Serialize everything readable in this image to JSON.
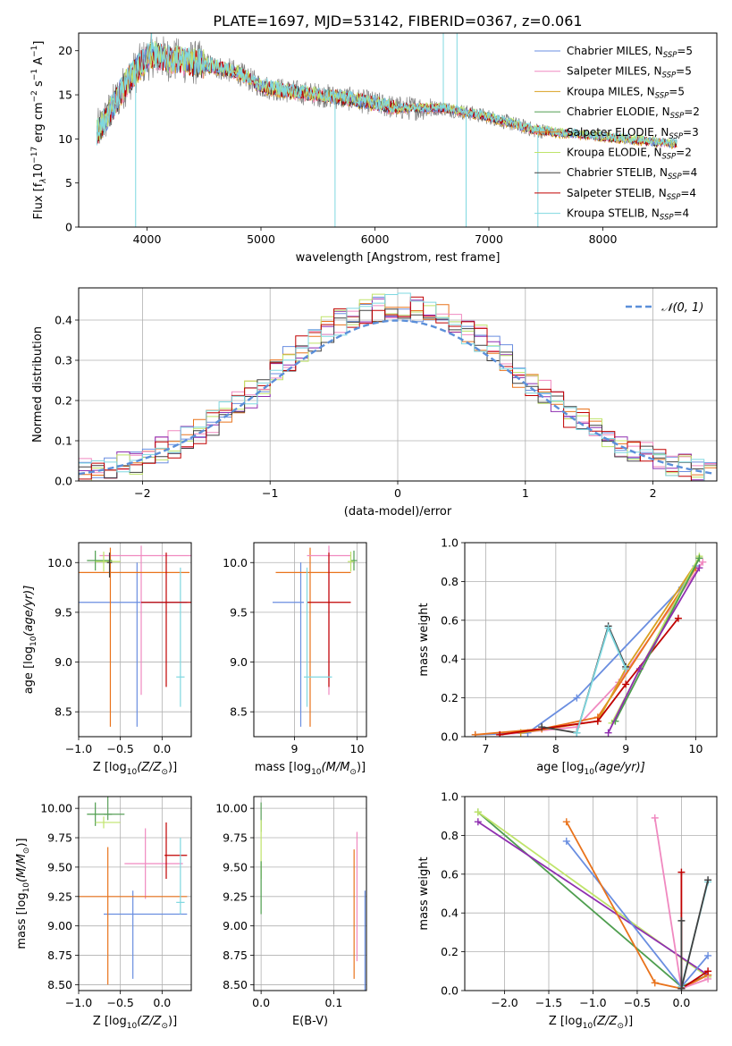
{
  "figure_title": "PLATE=1697, MJD=53142, FIBERID=0367, z=0.061",
  "model_colors": [
    "#6a8ee0",
    "#f089c0",
    "#d9a021",
    "#4f9e4f",
    "#e9731c",
    "#bfe46a",
    "#404040",
    "#c00000",
    "#7fd8e0"
  ],
  "colors_spec": {
    "data": "#808080",
    "normal_curve": "#5b8fd9",
    "grid": "#b0b0b0",
    "purple": "#8f2fb0",
    "green2": "#5aa05a"
  },
  "chart_data": [
    {
      "id": "spectrum",
      "type": "line",
      "title": "PLATE=1697, MJD=53142, FIBERID=0367, z=0.061",
      "xlabel": "wavelength [Angstrom, rest frame]",
      "ylabel_parts": [
        "Flux [f",
        "λ",
        "10",
        "−17",
        " erg cm",
        "−2",
        " s",
        "−1",
        " A",
        "−1",
        "]"
      ],
      "xlim": [
        3400,
        9000
      ],
      "ylim": [
        0,
        22
      ],
      "xticks": [
        4000,
        5000,
        6000,
        7000,
        8000
      ],
      "yticks": [
        0,
        5,
        10,
        15,
        20
      ],
      "grid": false,
      "legend_position": "top-right",
      "series": [
        {
          "name_main": "Chabrier MILES, N",
          "name_sub": "SSP",
          "name_tail": "=5"
        },
        {
          "name_main": "Salpeter MILES, N",
          "name_sub": "SSP",
          "name_tail": "=5"
        },
        {
          "name_main": "Kroupa MILES, N",
          "name_sub": "SSP",
          "name_tail": "=5"
        },
        {
          "name_main": "Chabrier ELODIE, N",
          "name_sub": "SSP",
          "name_tail": "=2"
        },
        {
          "name_main": "Salpeter ELODIE, N",
          "name_sub": "SSP",
          "name_tail": "=3"
        },
        {
          "name_main": "Kroupa ELODIE, N",
          "name_sub": "SSP",
          "name_tail": "=2"
        },
        {
          "name_main": "Chabrier STELIB, N",
          "name_sub": "SSP",
          "name_tail": "=4"
        },
        {
          "name_main": "Salpeter STELIB, N",
          "name_sub": "SSP",
          "name_tail": "=4"
        },
        {
          "name_main": "Kroupa STELIB, N",
          "name_sub": "SSP",
          "name_tail": "=4"
        }
      ],
      "continuum": [
        [
          3550,
          10.5
        ],
        [
          3650,
          12.5
        ],
        [
          3800,
          16
        ],
        [
          3950,
          18.5
        ],
        [
          4050,
          19.5
        ],
        [
          4200,
          19
        ],
        [
          4500,
          18.5
        ],
        [
          4800,
          17.5
        ],
        [
          5000,
          16
        ],
        [
          5200,
          15.5
        ],
        [
          5500,
          15
        ],
        [
          5800,
          14.5
        ],
        [
          6200,
          13.5
        ],
        [
          6600,
          13.5
        ],
        [
          7000,
          12.5
        ],
        [
          7400,
          11
        ],
        [
          7800,
          10.5
        ],
        [
          8200,
          10
        ],
        [
          8600,
          9.5
        ]
      ],
      "spikes": [
        [
          3900,
          0
        ],
        [
          4040,
          22
        ],
        [
          5650,
          0
        ],
        [
          6800,
          0
        ],
        [
          7430,
          0
        ],
        [
          6600,
          22
        ],
        [
          6720,
          22
        ],
        [
          7280,
          12
        ]
      ]
    },
    {
      "id": "residuals",
      "type": "line",
      "xlabel": "(data-model)/error",
      "ylabel": "Normed distribution",
      "xlim": [
        -2.5,
        2.5
      ],
      "ylim": [
        0,
        0.48
      ],
      "xticks": [
        -2,
        -1,
        0,
        1,
        2
      ],
      "xtick_labels": [
        "−2",
        "−1",
        "0",
        "1",
        "2"
      ],
      "yticks": [
        0,
        0.1,
        0.2,
        0.3,
        0.4
      ],
      "ytick_labels": [
        "0.0",
        "0.1",
        "0.2",
        "0.3",
        "0.4"
      ],
      "grid": true,
      "legend_position": "top-right",
      "legend_label": "𝒩(0, 1)",
      "bin_width": 0.1
    },
    {
      "id": "age_vs_Z",
      "type": "scatter",
      "xlabel_main": "Z [log",
      "xlabel_sub": "10",
      "xlabel_tail": "(Z/Z",
      "ylabel_main": "age  [log",
      "ylabel_sub": "10",
      "ylabel_tail": "(age/yr)]",
      "xlim": [
        -1.0,
        0.35
      ],
      "ylim": [
        8.25,
        10.2
      ],
      "xticks": [
        -1.0,
        -0.5,
        0.0
      ],
      "xtick_labels": [
        "−1.0",
        "−0.5",
        "0.0"
      ],
      "yticks": [
        8.5,
        9.0,
        9.5,
        10.0
      ],
      "ytick_labels": [
        "8.5",
        "9.0",
        "9.5",
        "10.0"
      ],
      "grid": true,
      "points": [
        {
          "x": -0.3,
          "y": 9.6,
          "xerr": [
            0.9,
            0.6
          ],
          "yerr": [
            1.25,
            0.4
          ],
          "c": 0
        },
        {
          "x": -0.25,
          "y": 10.07,
          "xerr": [
            0.5,
            0.7
          ],
          "yerr": [
            1.4,
            0.1
          ],
          "c": 1
        },
        {
          "x": -0.62,
          "y": 9.9,
          "xerr": [
            0.8,
            0.95
          ],
          "yerr": [
            1.55,
            0.25
          ],
          "c": 4
        },
        {
          "x": 0.22,
          "y": 8.85,
          "xerr": [
            0.05,
            0.05
          ],
          "yerr": [
            0.3,
            1.1
          ],
          "c": 8
        },
        {
          "x": 0.05,
          "y": 9.6,
          "xerr": [
            0.3,
            0.3
          ],
          "yerr": [
            0.85,
            0.5
          ],
          "c": 7
        },
        {
          "x": -0.8,
          "y": 10.02,
          "xerr": [
            0.1,
            0.2
          ],
          "yerr": [
            0.1,
            0.1
          ],
          "c": 3
        },
        {
          "x": -0.7,
          "y": 10.01,
          "xerr": [
            0.1,
            0.2
          ],
          "yerr": [
            0.1,
            0.1
          ],
          "c": 5
        },
        {
          "x": -0.63,
          "y": 10.0,
          "xerr": [
            0.03,
            0.03
          ],
          "yerr": [
            0.15,
            0.1
          ],
          "c": 6
        }
      ]
    },
    {
      "id": "age_vs_mass",
      "type": "scatter",
      "xlabel_main": "mass [log",
      "xlabel_sub": "10",
      "xlabel_tail": "(M/M",
      "xlim": [
        8.35,
        10.15
      ],
      "ylim": [
        8.25,
        10.2
      ],
      "xticks": [
        9,
        10
      ],
      "xtick_labels": [
        "9",
        "10"
      ],
      "yticks": [
        8.5,
        9.0,
        9.5,
        10.0
      ],
      "ytick_labels": [
        "8.5",
        "9.0",
        "9.5",
        "10.0"
      ],
      "grid": true,
      "points": [
        {
          "x": 9.1,
          "y": 9.6,
          "xerr": [
            0.45,
            0.05
          ],
          "yerr": [
            1.25,
            0.4
          ],
          "c": 0
        },
        {
          "x": 9.25,
          "y": 9.9,
          "xerr": [
            0.55,
            0.65
          ],
          "yerr": [
            1.55,
            0.25
          ],
          "c": 4
        },
        {
          "x": 9.55,
          "y": 10.07,
          "xerr": [
            0.35,
            0.35
          ],
          "yerr": [
            1.4,
            0.1
          ],
          "c": 1
        },
        {
          "x": 9.55,
          "y": 9.6,
          "xerr": [
            0.35,
            0.35
          ],
          "yerr": [
            0.85,
            0.5
          ],
          "c": 7
        },
        {
          "x": 9.2,
          "y": 8.85,
          "xerr": [
            0.05,
            0.4
          ],
          "yerr": [
            0.3,
            1.1
          ],
          "c": 8
        },
        {
          "x": 9.95,
          "y": 10.02,
          "xerr": [
            0.05,
            0.05
          ],
          "yerr": [
            0.1,
            0.1
          ],
          "c": 3
        },
        {
          "x": 9.9,
          "y": 10.01,
          "xerr": [
            0.05,
            0.05
          ],
          "yerr": [
            0.1,
            0.1
          ],
          "c": 5
        }
      ]
    },
    {
      "id": "weight_vs_age",
      "type": "line",
      "xlabel_main": "age  [log",
      "xlabel_sub": "10",
      "xlabel_tail": "(age/yr)]",
      "ylabel": "mass weight",
      "xlim": [
        6.7,
        10.3
      ],
      "ylim": [
        0,
        1.0
      ],
      "xticks": [
        7,
        8,
        9,
        10
      ],
      "xtick_labels": [
        "7",
        "8",
        "9",
        "10"
      ],
      "yticks": [
        0,
        0.2,
        0.4,
        0.6,
        0.8,
        1.0
      ],
      "ytick_labels": [
        "0.0",
        "0.2",
        "0.4",
        "0.6",
        "0.8",
        "1.0"
      ],
      "grid": true,
      "series": [
        {
          "c": 0,
          "x": [
            6.85,
            7.6,
            8.3,
            9.8,
            10.0
          ],
          "y": [
            0.01,
            0.02,
            0.2,
            0.77,
            0.88
          ]
        },
        {
          "c": 1,
          "x": [
            7.2,
            8.3,
            8.9,
            10.1
          ],
          "y": [
            0.01,
            0.05,
            0.28,
            0.9
          ]
        },
        {
          "c": 4,
          "x": [
            6.85,
            7.8,
            8.6,
            10.0
          ],
          "y": [
            0.01,
            0.04,
            0.1,
            0.87
          ]
        },
        {
          "c": 2,
          "x": [
            7.5,
            8.6,
            9.0,
            10.05
          ],
          "y": [
            0.02,
            0.08,
            0.35,
            0.92
          ]
        },
        {
          "c": 7,
          "x": [
            7.2,
            8.6,
            9.0,
            9.75
          ],
          "y": [
            0.01,
            0.08,
            0.27,
            0.61
          ]
        },
        {
          "c": 5,
          "x": [
            8.8,
            10.05
          ],
          "y": [
            0.07,
            0.93
          ]
        },
        {
          "c": 3,
          "x": [
            8.85,
            10.05
          ],
          "y": [
            0.08,
            0.92
          ]
        },
        {
          "c": 6,
          "x": [
            7.8,
            8.3,
            8.75,
            9.0
          ],
          "y": [
            0.05,
            0.02,
            0.57,
            0.36
          ]
        },
        {
          "c": 8,
          "x": [
            8.3,
            8.75,
            9.0
          ],
          "y": [
            0.02,
            0.56,
            0.35
          ]
        },
        {
          "c": 9,
          "x": [
            8.75,
            9.2,
            10.05
          ],
          "y": [
            0.02,
            0.35,
            0.87
          ]
        }
      ]
    },
    {
      "id": "mass_vs_Z",
      "type": "scatter",
      "xlabel_main": "Z [log",
      "xlabel_sub": "10",
      "xlabel_tail": "(Z/Z",
      "ylabel_main": "mass [log",
      "ylabel_sub": "10",
      "ylabel_tail": "(M/M",
      "xlim": [
        -1.0,
        0.35
      ],
      "ylim": [
        8.45,
        10.1
      ],
      "xticks": [
        -1.0,
        -0.5,
        0.0
      ],
      "xtick_labels": [
        "−1.0",
        "−0.5",
        "0.0"
      ],
      "yticks": [
        8.5,
        8.75,
        9.0,
        9.25,
        9.5,
        9.75,
        10.0
      ],
      "ytick_labels": [
        "8.50",
        "8.75",
        "9.00",
        "9.25",
        "9.50",
        "9.75",
        "10.00"
      ],
      "grid": true,
      "points": [
        {
          "x": -0.35,
          "y": 9.1,
          "xerr": [
            0.35,
            0.65
          ],
          "yerr": [
            0.55,
            0.2
          ],
          "c": 0
        },
        {
          "x": -0.2,
          "y": 9.53,
          "xerr": [
            0.25,
            0.45
          ],
          "yerr": [
            0.3,
            0.3
          ],
          "c": 1
        },
        {
          "x": -0.65,
          "y": 9.25,
          "xerr": [
            0.6,
            0.95
          ],
          "yerr": [
            0.75,
            0.42
          ],
          "c": 4
        },
        {
          "x": 0.05,
          "y": 9.6,
          "xerr": [
            0.02,
            0.25
          ],
          "yerr": [
            0.2,
            0.28
          ],
          "c": 7
        },
        {
          "x": 0.22,
          "y": 9.2,
          "xerr": [
            0.05,
            0.05
          ],
          "yerr": [
            0.1,
            0.55
          ],
          "c": 8
        },
        {
          "x": -0.8,
          "y": 9.95,
          "xerr": [
            0.1,
            0.2
          ],
          "yerr": [
            0.1,
            0.1
          ],
          "c": 3
        },
        {
          "x": -0.7,
          "y": 9.88,
          "xerr": [
            0.1,
            0.2
          ],
          "yerr": [
            0.05,
            0.05
          ],
          "c": 5
        },
        {
          "x": -0.65,
          "y": 9.95,
          "xerr": [
            0.05,
            0.2
          ],
          "yerr": [
            0.05,
            0.15
          ],
          "c": 10
        }
      ]
    },
    {
      "id": "mass_vs_ebv",
      "type": "scatter",
      "xlabel": "E(B-V)",
      "xlim": [
        -0.01,
        0.145
      ],
      "ylim": [
        8.45,
        10.1
      ],
      "xticks": [
        0.0,
        0.1
      ],
      "xtick_labels": [
        "0.0",
        "0.1"
      ],
      "yticks": [
        8.5,
        8.75,
        9.0,
        9.25,
        9.5,
        9.75,
        10.0
      ],
      "ytick_labels": [
        "8.50",
        "8.75",
        "9.00",
        "9.25",
        "9.50",
        "9.75",
        "10.00"
      ],
      "grid": true,
      "points": [
        {
          "x": 0.0,
          "y": 9.95,
          "xerr": [
            0,
            0
          ],
          "yerr": [
            0.15,
            0.1
          ],
          "c": 10
        },
        {
          "x": 0.0,
          "y": 9.7,
          "xerr": [
            0,
            0
          ],
          "yerr": [
            0.3,
            0.2
          ],
          "c": 5
        },
        {
          "x": 0.0,
          "y": 9.45,
          "xerr": [
            0,
            0
          ],
          "yerr": [
            0.35,
            0.1
          ],
          "c": 3
        },
        {
          "x": 0.128,
          "y": 9.1,
          "xerr": [
            0,
            0
          ],
          "yerr": [
            0.55,
            0.55
          ],
          "c": 4
        },
        {
          "x": 0.132,
          "y": 9.3,
          "xerr": [
            0,
            0
          ],
          "yerr": [
            0.6,
            0.5
          ],
          "c": 1
        },
        {
          "x": 0.143,
          "y": 9.0,
          "xerr": [
            0,
            0
          ],
          "yerr": [
            0.55,
            0.3
          ],
          "c": 0
        }
      ]
    },
    {
      "id": "weight_vs_Z",
      "type": "line",
      "xlabel_main": "Z [log",
      "xlabel_sub": "10",
      "xlabel_tail": "(Z/Z",
      "ylabel": "mass weight",
      "xlim": [
        -2.45,
        0.4
      ],
      "ylim": [
        0,
        1.0
      ],
      "xticks": [
        -2.0,
        -1.5,
        -1.0,
        -0.5,
        0.0
      ],
      "xtick_labels": [
        "−2.0",
        "−1.5",
        "−1.0",
        "−0.5",
        "0.0"
      ],
      "yticks": [
        0,
        0.2,
        0.4,
        0.6,
        0.8,
        1.0
      ],
      "ytick_labels": [
        "0.0",
        "0.2",
        "0.4",
        "0.6",
        "0.8",
        "1.0"
      ],
      "grid": true,
      "series": [
        {
          "c": 3,
          "x": [
            -2.3,
            0.0,
            0.3
          ],
          "y": [
            0.92,
            0.02,
            0.08
          ]
        },
        {
          "c": 5,
          "x": [
            -2.3,
            0.3
          ],
          "y": [
            0.92,
            0.07
          ]
        },
        {
          "c": 9,
          "x": [
            -2.3,
            0.3
          ],
          "y": [
            0.87,
            0.08
          ]
        },
        {
          "c": 0,
          "x": [
            -1.3,
            0.0,
            0.3
          ],
          "y": [
            0.77,
            0.02,
            0.18
          ]
        },
        {
          "c": 4,
          "x": [
            -1.3,
            -0.3,
            0.0,
            0.3
          ],
          "y": [
            0.87,
            0.04,
            0.01,
            0.08
          ]
        },
        {
          "c": 1,
          "x": [
            -0.3,
            0.0,
            0.3
          ],
          "y": [
            0.89,
            0.01,
            0.06
          ]
        },
        {
          "c": 7,
          "x": [
            0.0,
            0.0,
            0.3
          ],
          "y": [
            0.61,
            0.01,
            0.1
          ]
        },
        {
          "c": 8,
          "x": [
            0.0,
            0.3
          ],
          "y": [
            0.02,
            0.56
          ]
        },
        {
          "c": 6,
          "x": [
            0.0,
            0.0,
            0.3
          ],
          "y": [
            0.36,
            0.01,
            0.57
          ]
        }
      ]
    }
  ]
}
